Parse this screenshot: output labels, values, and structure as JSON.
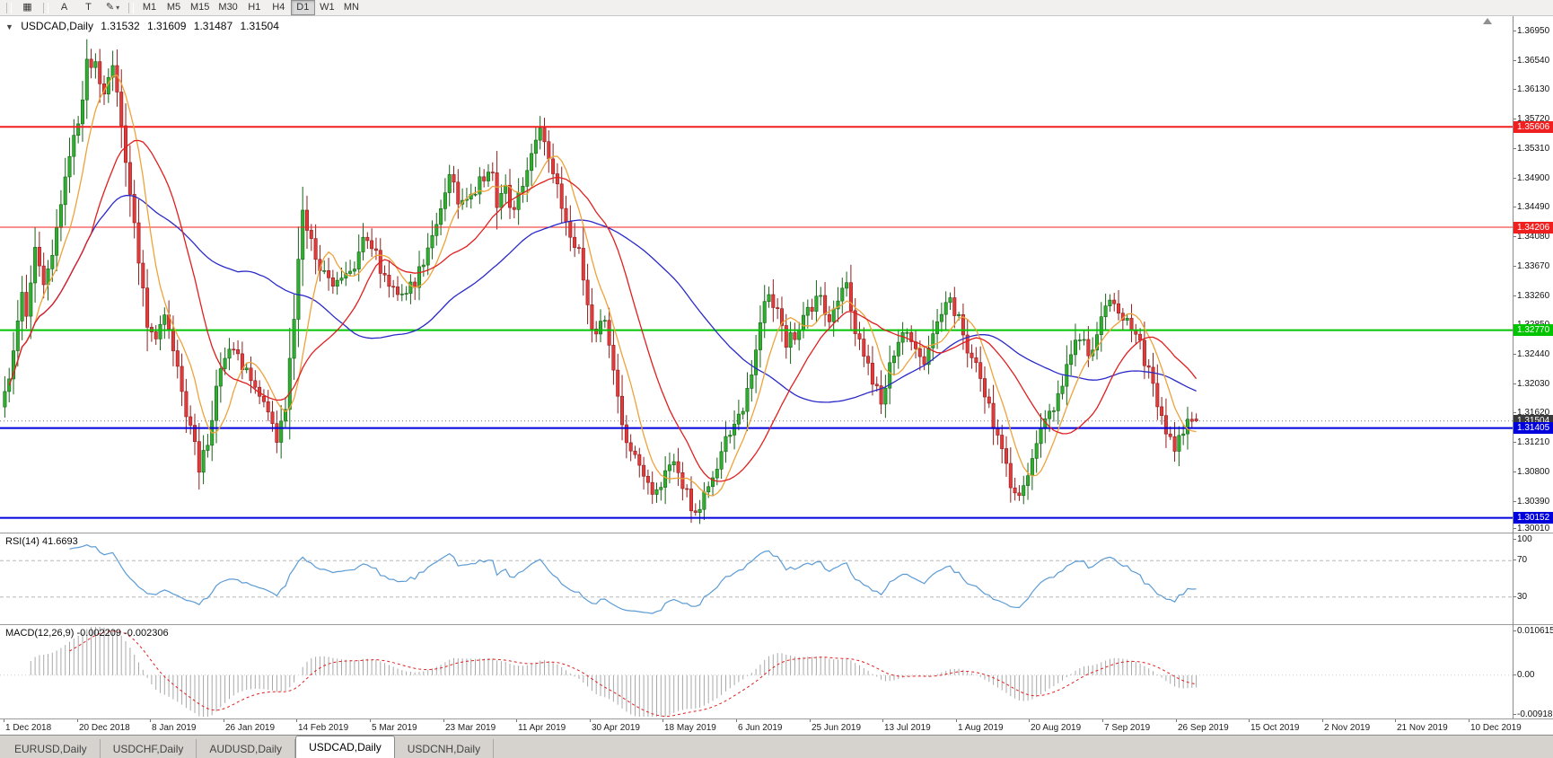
{
  "toolbar": {
    "icon_buttons": [
      {
        "name": "chart-grid-icon",
        "glyph": "▦"
      },
      {
        "name": "text-label-a-icon",
        "glyph": "A"
      },
      {
        "name": "text-annotation-t-icon",
        "glyph": "T"
      },
      {
        "name": "drawing-tools-icon",
        "glyph": "✎",
        "dropdown": "▾"
      }
    ],
    "timeframes": [
      "M1",
      "M5",
      "M15",
      "M30",
      "H1",
      "H4",
      "D1",
      "W1",
      "MN"
    ],
    "active_timeframe": "D1"
  },
  "main_chart": {
    "expander": "▼",
    "symbol_label": "USDCAD,Daily",
    "ohlc": {
      "open": "1.31532",
      "high": "1.31609",
      "low": "1.31487",
      "close": "1.31504"
    }
  },
  "price_axis": {
    "labels": [
      "1.36950",
      "1.36540",
      "1.36130",
      "1.35720",
      "1.35310",
      "1.34900",
      "1.34490",
      "1.34080",
      "1.33670",
      "1.33260",
      "1.32850",
      "1.32440",
      "1.32030",
      "1.31620",
      "1.31210",
      "1.30800",
      "1.30390",
      "1.30010"
    ],
    "badges": [
      {
        "text": "1.35606",
        "value": 1.35606,
        "bg": "#f02020",
        "fg": "#ffffff"
      },
      {
        "text": "1.34206",
        "value": 1.34206,
        "bg": "#f02020",
        "fg": "#ffffff"
      },
      {
        "text": "1.32770",
        "value": 1.3277,
        "bg": "#00c400",
        "fg": "#ffffff"
      },
      {
        "text": "1.31504",
        "value": 1.31504,
        "bg": "#3a3a3a",
        "fg": "#ffffff"
      },
      {
        "text": "1.31405",
        "value": 1.31405,
        "bg": "#0000dd",
        "fg": "#ffffff"
      },
      {
        "text": "1.30152",
        "value": 1.30152,
        "bg": "#0000dd",
        "fg": "#ffffff"
      }
    ]
  },
  "rsi": {
    "label": "RSI(14) 41.6693",
    "period": 14,
    "current": 41.6693,
    "levels": [
      70,
      30
    ],
    "axis_labels": [
      {
        "text": "100",
        "value": 100
      },
      {
        "text": "70",
        "value": 70
      },
      {
        "text": "30",
        "value": 30
      }
    ],
    "color": "#5b9bd5"
  },
  "macd": {
    "label": "MACD(12,26,9) -0.002209 -0.002306",
    "current_macd": -0.002209,
    "current_signal": -0.002306,
    "axis_labels": [
      {
        "text": "0.010615",
        "value": 0.010615
      },
      {
        "text": "0.00",
        "value": 0
      },
      {
        "text": "-0.009181",
        "value": -0.009181
      }
    ],
    "range": [
      -0.009181,
      0.010615
    ],
    "histogram_color": "#a8a8a8",
    "signal_color": "#e02020"
  },
  "dates": [
    "1 Dec 2018",
    "20 Dec 2018",
    "8 Jan 2019",
    "26 Jan 2019",
    "14 Feb 2019",
    "5 Mar 2019",
    "23 Mar 2019",
    "11 Apr 2019",
    "30 Apr 2019",
    "18 May 2019",
    "6 Jun 2019",
    "25 Jun 2019",
    "13 Jul 2019",
    "1 Aug 2019",
    "20 Aug 2019",
    "7 Sep 2019",
    "26 Sep 2019",
    "15 Oct 2019",
    "2 Nov 2019",
    "21 Nov 2019",
    "10 Dec 2019"
  ],
  "tabs": {
    "items": [
      "EURUSD,Daily",
      "USDCHF,Daily",
      "AUDUSD,Daily",
      "USDCAD,Daily",
      "USDCNH,Daily"
    ],
    "active": "USDCAD,Daily"
  },
  "chart_data": {
    "type": "candlestick",
    "symbol": "USDCAD",
    "timeframe": "Daily",
    "title": "USDCAD,Daily",
    "y_range": [
      1.29947,
      1.3715
    ],
    "num_candles": 277,
    "last_candle": {
      "open": 1.31532,
      "high": 1.31609,
      "low": 1.31487,
      "close": 1.31504
    },
    "price_path_anchors": [
      [
        0,
        1.3185
      ],
      [
        2,
        1.324
      ],
      [
        4,
        1.332
      ],
      [
        5,
        1.33
      ],
      [
        7,
        1.339
      ],
      [
        9,
        1.3345
      ],
      [
        11,
        1.338
      ],
      [
        13,
        1.3445
      ],
      [
        15,
        1.352
      ],
      [
        17,
        1.356
      ],
      [
        19,
        1.3645
      ],
      [
        21,
        1.365
      ],
      [
        23,
        1.36
      ],
      [
        25,
        1.3655
      ],
      [
        27,
        1.356
      ],
      [
        29,
        1.346
      ],
      [
        31,
        1.338
      ],
      [
        33,
        1.328
      ],
      [
        35,
        1.326
      ],
      [
        37,
        1.329
      ],
      [
        39,
        1.325
      ],
      [
        41,
        1.319
      ],
      [
        43,
        1.314
      ],
      [
        45,
        1.3085
      ],
      [
        47,
        1.312
      ],
      [
        49,
        1.32
      ],
      [
        52,
        1.3245
      ],
      [
        55,
        1.323
      ],
      [
        58,
        1.3195
      ],
      [
        61,
        1.316
      ],
      [
        63,
        1.313
      ],
      [
        65,
        1.3175
      ],
      [
        67,
        1.33
      ],
      [
        68,
        1.338
      ],
      [
        69,
        1.3445
      ],
      [
        71,
        1.3405
      ],
      [
        73,
        1.336
      ],
      [
        76,
        1.3335
      ],
      [
        79,
        1.335
      ],
      [
        81,
        1.337
      ],
      [
        83,
        1.3415
      ],
      [
        85,
        1.34
      ],
      [
        87,
        1.336
      ],
      [
        90,
        1.3335
      ],
      [
        93,
        1.333
      ],
      [
        95,
        1.334
      ],
      [
        98,
        1.339
      ],
      [
        101,
        1.345
      ],
      [
        103,
        1.35
      ],
      [
        105,
        1.3455
      ],
      [
        107,
        1.3465
      ],
      [
        109,
        1.3475
      ],
      [
        111,
        1.349
      ],
      [
        113,
        1.3505
      ],
      [
        114,
        1.345
      ],
      [
        116,
        1.347
      ],
      [
        118,
        1.3445
      ],
      [
        120,
        1.348
      ],
      [
        122,
        1.3515
      ],
      [
        124,
        1.356
      ],
      [
        125,
        1.354
      ],
      [
        127,
        1.35
      ],
      [
        129,
        1.345
      ],
      [
        131,
        1.3415
      ],
      [
        133,
        1.3385
      ],
      [
        135,
        1.3305
      ],
      [
        137,
        1.327
      ],
      [
        139,
        1.3295
      ],
      [
        141,
        1.3225
      ],
      [
        143,
        1.3135
      ],
      [
        145,
        1.3105
      ],
      [
        147,
        1.3085
      ],
      [
        149,
        1.3068
      ],
      [
        151,
        1.3045
      ],
      [
        153,
        1.3072
      ],
      [
        155,
        1.3092
      ],
      [
        157,
        1.3062
      ],
      [
        159,
        1.3032
      ],
      [
        161,
        1.3022
      ],
      [
        163,
        1.3062
      ],
      [
        165,
        1.3088
      ],
      [
        167,
        1.3122
      ],
      [
        169,
        1.3148
      ],
      [
        171,
        1.3168
      ],
      [
        173,
        1.3208
      ],
      [
        175,
        1.329
      ],
      [
        177,
        1.3332
      ],
      [
        179,
        1.3302
      ],
      [
        181,
        1.3258
      ],
      [
        183,
        1.3272
      ],
      [
        185,
        1.3296
      ],
      [
        187,
        1.3312
      ],
      [
        189,
        1.3318
      ],
      [
        191,
        1.3292
      ],
      [
        193,
        1.3312
      ],
      [
        195,
        1.3342
      ],
      [
        197,
        1.3282
      ],
      [
        199,
        1.3242
      ],
      [
        201,
        1.3208
      ],
      [
        203,
        1.3172
      ],
      [
        205,
        1.3222
      ],
      [
        207,
        1.3256
      ],
      [
        209,
        1.3282
      ],
      [
        211,
        1.3252
      ],
      [
        213,
        1.3236
      ],
      [
        215,
        1.3272
      ],
      [
        217,
        1.3292
      ],
      [
        219,
        1.3322
      ],
      [
        221,
        1.3292
      ],
      [
        223,
        1.3252
      ],
      [
        225,
        1.3226
      ],
      [
        227,
        1.3192
      ],
      [
        229,
        1.3142
      ],
      [
        231,
        1.3102
      ],
      [
        233,
        1.3062
      ],
      [
        235,
        1.3046
      ],
      [
        237,
        1.3082
      ],
      [
        239,
        1.3122
      ],
      [
        241,
        1.3152
      ],
      [
        243,
        1.3172
      ],
      [
        245,
        1.3202
      ],
      [
        247,
        1.3242
      ],
      [
        249,
        1.3272
      ],
      [
        251,
        1.3246
      ],
      [
        253,
        1.3272
      ],
      [
        255,
        1.3302
      ],
      [
        257,
        1.3322
      ],
      [
        259,
        1.3296
      ],
      [
        261,
        1.3272
      ],
      [
        263,
        1.3256
      ],
      [
        265,
        1.3216
      ],
      [
        267,
        1.3172
      ],
      [
        269,
        1.3132
      ],
      [
        271,
        1.3106
      ],
      [
        273,
        1.3142
      ],
      [
        275,
        1.3158
      ],
      [
        276,
        1.315
      ]
    ],
    "horizontal_lines": [
      {
        "price": 1.35606,
        "color": "#f02020",
        "width": 2
      },
      {
        "price": 1.34206,
        "color": "#f02020",
        "width": 1
      },
      {
        "price": 1.3277,
        "color": "#00c400",
        "width": 2
      },
      {
        "price": 1.31405,
        "color": "#0000dd",
        "width": 2
      },
      {
        "price": 1.30152,
        "color": "#0000dd",
        "width": 2
      }
    ],
    "current_price_line": {
      "price": 1.31504,
      "color": "#777777"
    },
    "moving_averages": [
      {
        "period": 55,
        "color": "#2a2ac8"
      },
      {
        "period": 8,
        "color": "#eda33a"
      },
      {
        "period": 21,
        "color": "#e02020"
      }
    ],
    "candle_up": {
      "fill": "#2fae2f",
      "stroke": "#156315"
    },
    "candle_down": {
      "fill": "#e13b3b",
      "stroke": "#8f1d1d"
    }
  }
}
